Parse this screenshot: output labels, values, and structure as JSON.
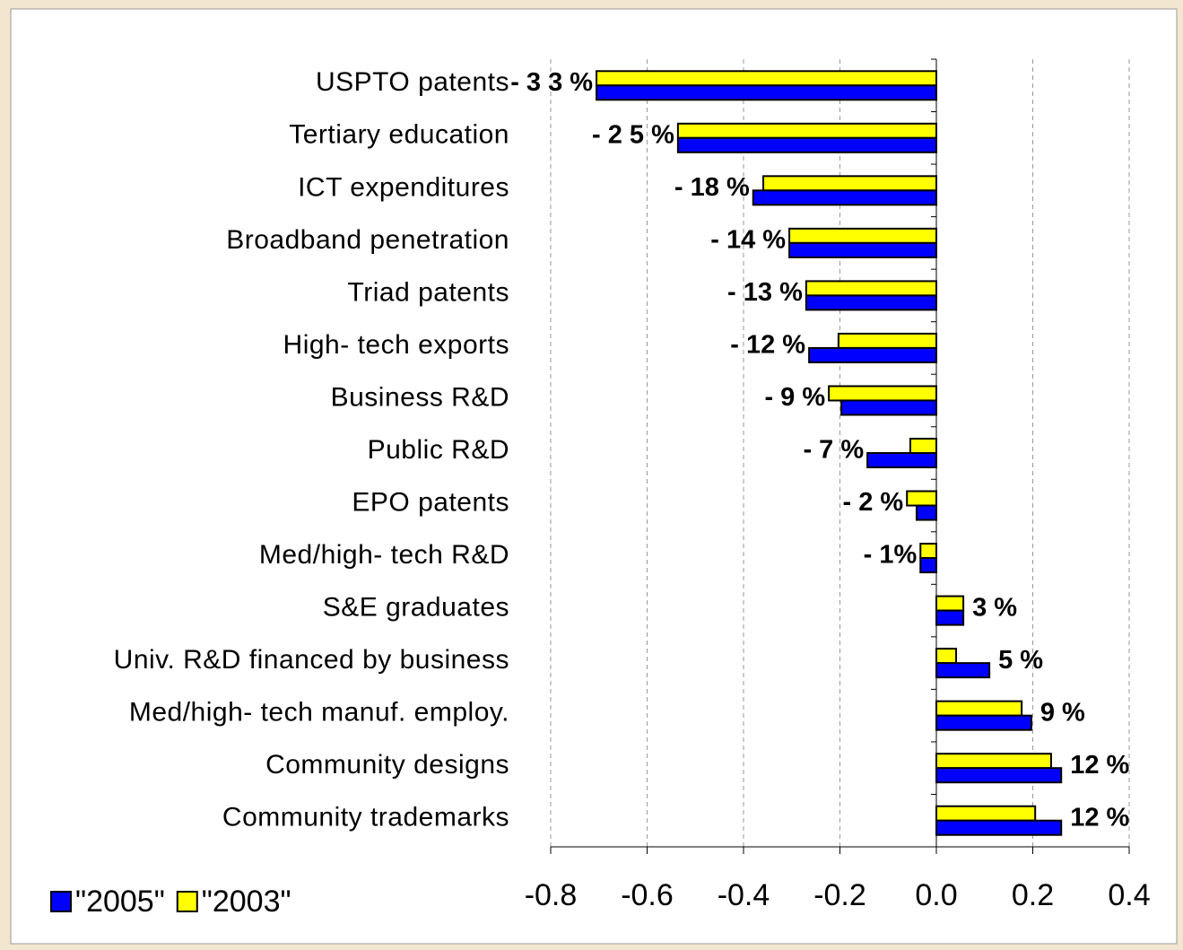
{
  "chart_data": {
    "type": "hbar",
    "categories": [
      "USPTO patents",
      "Tertiary education",
      "ICT expenditures",
      "Broadband penetration",
      "Triad patents",
      "High- tech exports",
      "Business R&D",
      "Public R&D",
      "EPO patents",
      "Med/high- tech R&D",
      "S&E graduates",
      "Univ. R&D financed by business",
      "Med/high- tech manuf. employ.",
      "Community designs",
      "Community trademarks"
    ],
    "series": [
      {
        "name": "\"2005\"",
        "color": "#0000ff",
        "values": [
          -0.705,
          -0.536,
          -0.38,
          -0.305,
          -0.27,
          -0.264,
          -0.197,
          -0.143,
          -0.041,
          -0.033,
          0.056,
          0.11,
          0.197,
          0.259,
          0.259
        ]
      },
      {
        "name": "\"2003\"",
        "color": "#ffff00",
        "values": [
          -0.705,
          -0.536,
          -0.359,
          -0.305,
          -0.27,
          -0.203,
          -0.223,
          -0.054,
          -0.061,
          -0.033,
          0.056,
          0.041,
          0.177,
          0.238,
          0.205
        ]
      }
    ],
    "annotations": [
      "- 3 3 %",
      "- 2 5 %",
      "- 18 %",
      "- 14 %",
      "- 13 %",
      "- 12 %",
      "- 9 %",
      "- 7 %",
      "- 2 %",
      "- 1%",
      "3 %",
      "5 %",
      "9 %",
      "12 %",
      "12 %"
    ],
    "xlim": [
      -0.8,
      0.4
    ],
    "xticks": [
      -0.8,
      -0.6,
      -0.4,
      -0.2,
      {
        "value": 0,
        "label": "0.0"
      },
      0.2,
      0.4
    ],
    "grid": true,
    "legend": "bottom-left"
  }
}
